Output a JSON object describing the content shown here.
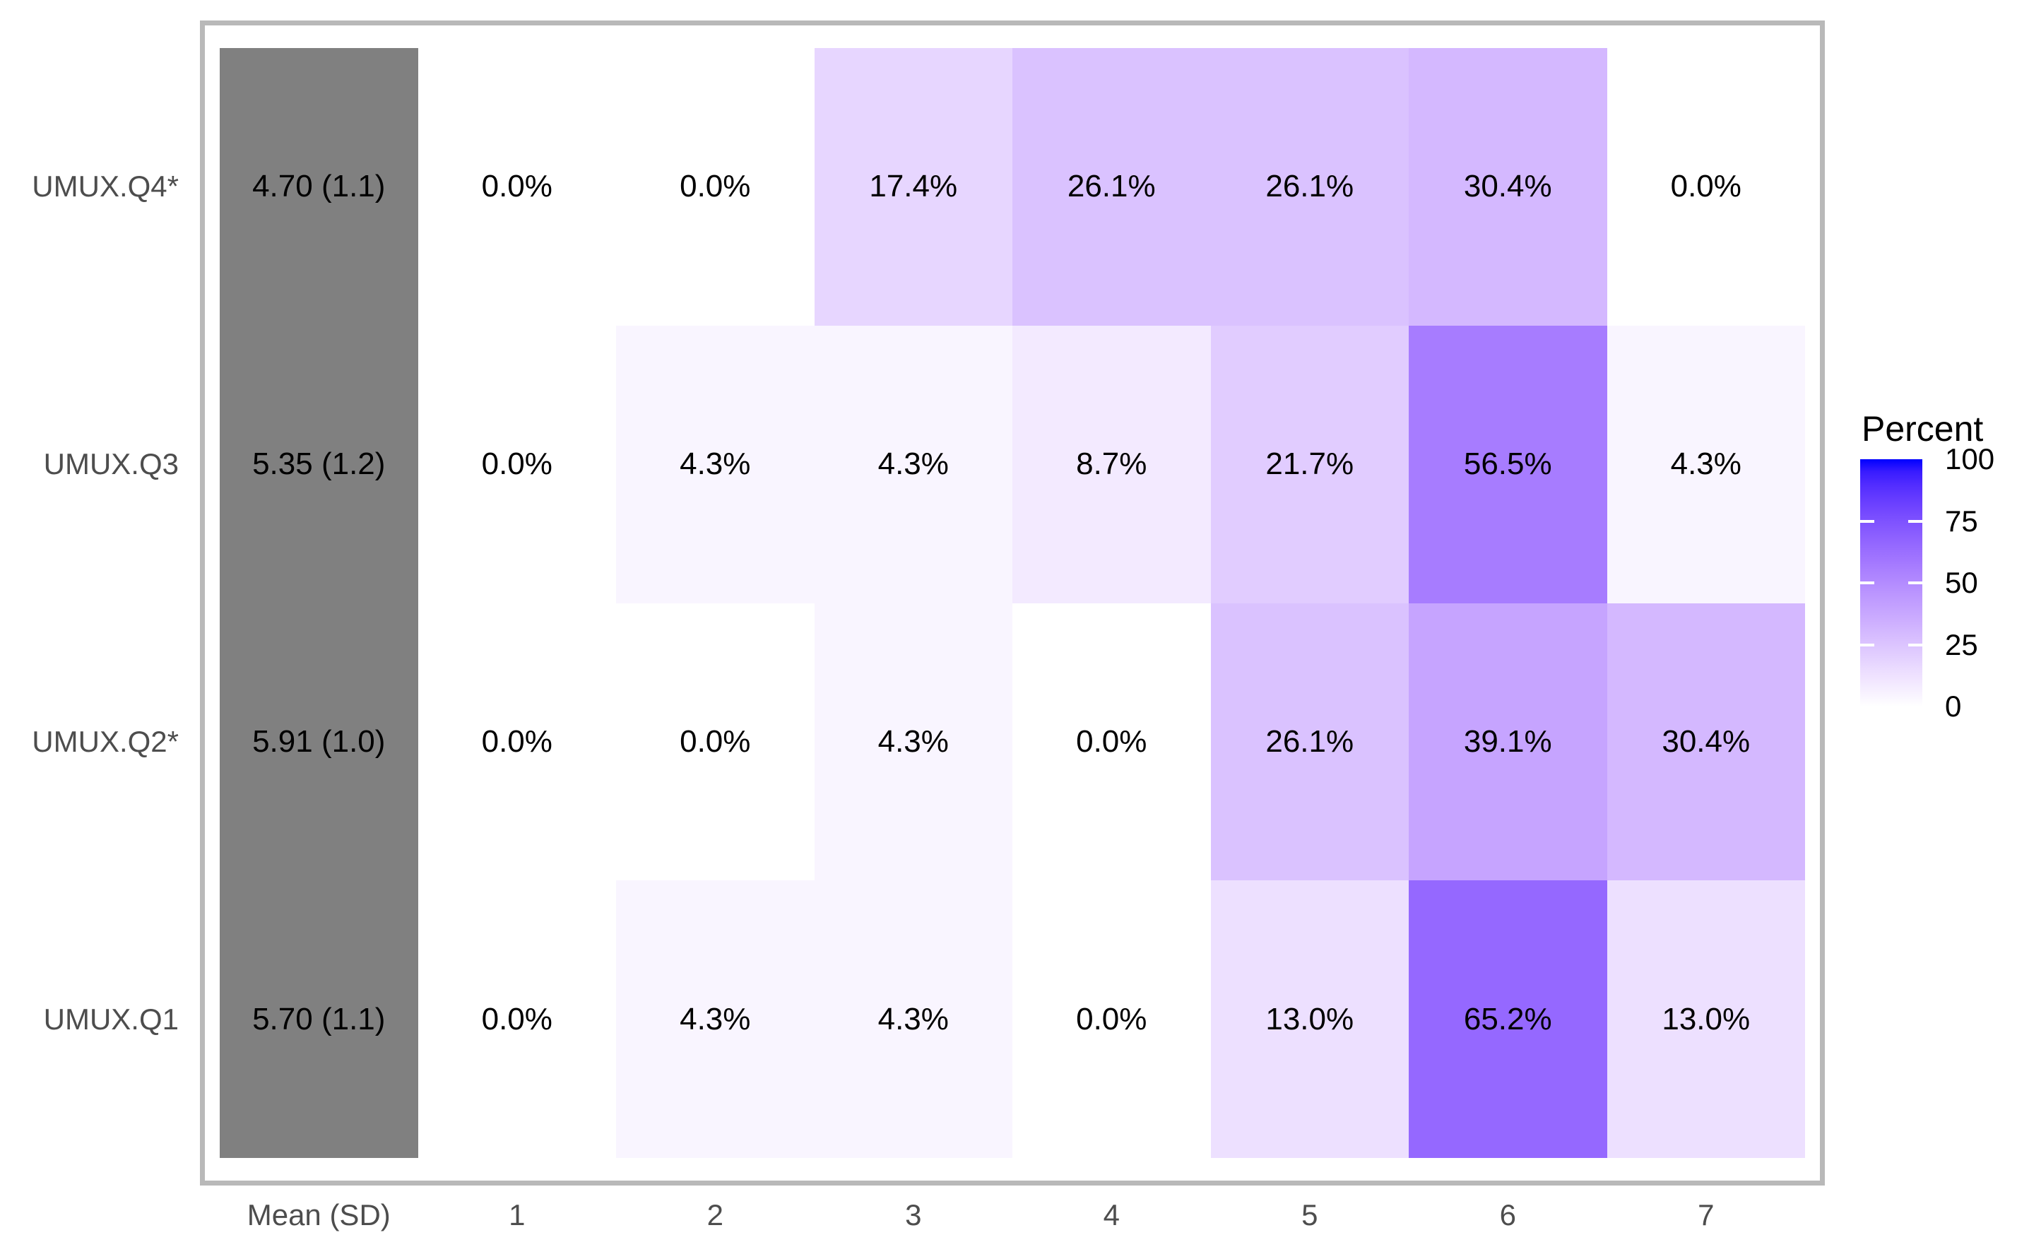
{
  "chart_data": {
    "type": "heatmap",
    "title": "",
    "xlabel": "",
    "ylabel": "",
    "x_categories": [
      "Mean (SD)",
      "1",
      "2",
      "3",
      "4",
      "5",
      "6",
      "7"
    ],
    "y_categories": [
      "UMUX.Q4*",
      "UMUX.Q3",
      "UMUX.Q2*",
      "UMUX.Q1"
    ],
    "rows": [
      {
        "label": "UMUX.Q4*",
        "mean_sd": "4.70 (1.1)",
        "percents": [
          0.0,
          0.0,
          17.4,
          26.1,
          26.1,
          30.4,
          0.0
        ]
      },
      {
        "label": "UMUX.Q3",
        "mean_sd": "5.35 (1.2)",
        "percents": [
          0.0,
          4.3,
          4.3,
          8.7,
          21.7,
          56.5,
          4.3
        ]
      },
      {
        "label": "UMUX.Q2*",
        "mean_sd": "5.91 (1.0)",
        "percents": [
          0.0,
          0.0,
          4.3,
          0.0,
          26.1,
          39.1,
          30.4
        ]
      },
      {
        "label": "UMUX.Q1",
        "mean_sd": "5.70 (1.1)",
        "percents": [
          0.0,
          4.3,
          4.3,
          0.0,
          13.0,
          65.2,
          13.0
        ]
      }
    ],
    "legend": {
      "title": "Percent",
      "min": 0,
      "max": 100,
      "ticks": [
        0,
        25,
        50,
        75,
        100
      ],
      "low_color": "#FFFFFF",
      "high_color": "#0000FF"
    },
    "colors": {
      "mean_column": "#808080",
      "panel_border": "#B9B9B9",
      "axis_text": "#4D4D4D",
      "cell_text": "#000000",
      "panel_background": "#FFFFFF"
    },
    "grid": false,
    "legend_position": "right",
    "value_suffix": "%"
  }
}
